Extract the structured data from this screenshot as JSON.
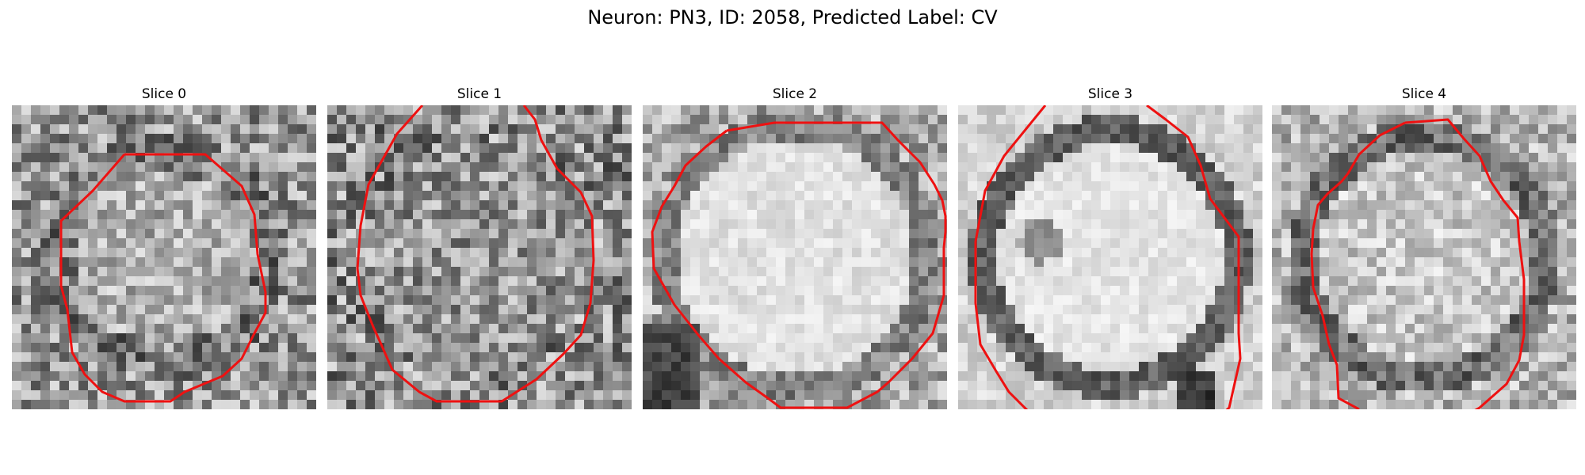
{
  "figure": {
    "title": "Neuron: PN3, ID: 2058, Predicted Label: CV"
  },
  "panels": [
    {
      "title": "Slice 0",
      "style": "noisy-disk"
    },
    {
      "title": "Slice 1",
      "style": "noisy-dark"
    },
    {
      "title": "Slice 2",
      "style": "bright-disk"
    },
    {
      "title": "Slice 3",
      "style": "bright-disk-ring"
    },
    {
      "title": "Slice 4",
      "style": "noisy-ring"
    }
  ],
  "colors": {
    "contour": "#ee1111",
    "background": "#ffffff"
  }
}
